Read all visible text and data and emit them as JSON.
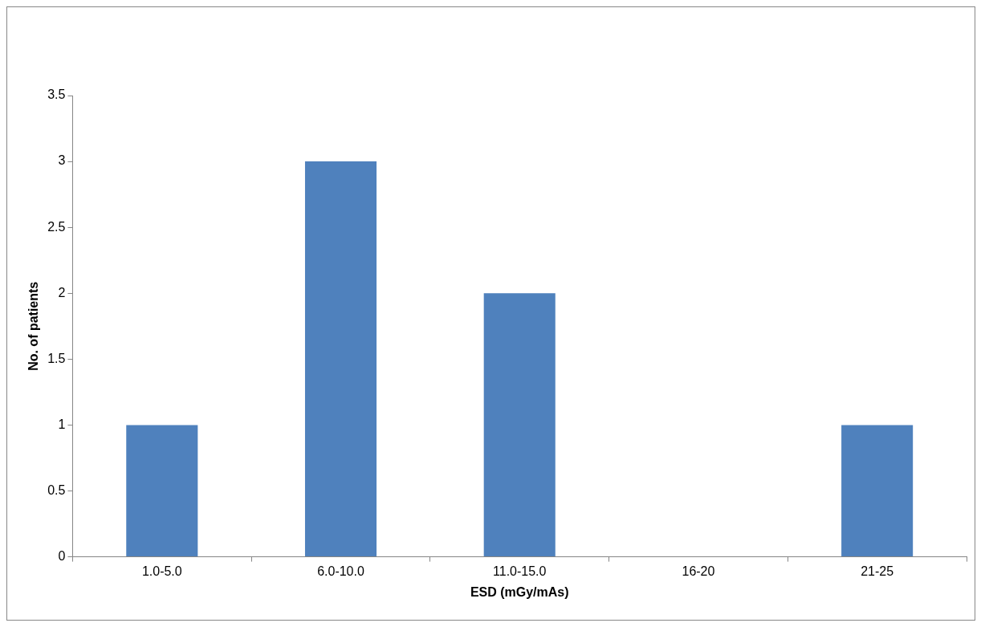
{
  "chart_data": {
    "type": "bar",
    "xlabel": "ESD (mGy/mAs)",
    "ylabel": "No. of patients",
    "categories": [
      "1.0-5.0",
      "6.0-10.0",
      "11.0-15.0",
      "16-20",
      "21-25"
    ],
    "values": [
      1,
      3,
      2,
      0,
      1
    ],
    "color": "#4f81bd",
    "ylim": [
      0,
      3.5
    ],
    "yticks": [
      0,
      0.5,
      1,
      1.5,
      2,
      2.5,
      3,
      3.5
    ],
    "grid": false,
    "legend": false
  }
}
